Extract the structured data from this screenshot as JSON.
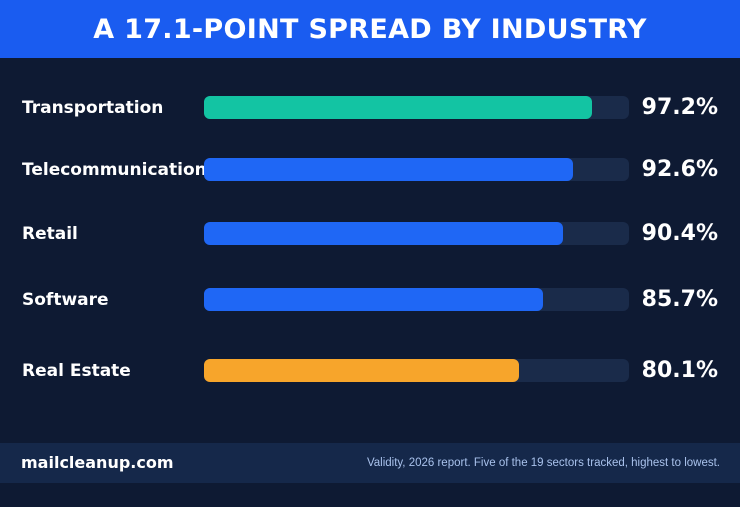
{
  "header": {
    "title": "A 17.1-POINT SPREAD BY INDUSTRY"
  },
  "chart_data": {
    "type": "bar",
    "orientation": "horizontal",
    "title": "A 17.1-POINT SPREAD BY INDUSTRY",
    "categories": [
      "Transportation",
      "Telecommunications",
      "Retail",
      "Software",
      "Real Estate"
    ],
    "values": [
      97.2,
      92.6,
      90.4,
      85.7,
      80.1
    ],
    "value_labels": [
      "97.2%",
      "92.6%",
      "90.4%",
      "85.7%",
      "80.1%"
    ],
    "colors": [
      "#13c4a3",
      "#1f67f5",
      "#1f67f5",
      "#1f67f5",
      "#f7a52b"
    ],
    "xlim": [
      0,
      100
    ],
    "grid": false
  },
  "footer": {
    "site": "mailcleanup.com",
    "note": "Validity, 2026 report. Five of the 19 sectors tracked, highest to lowest."
  },
  "colors": {
    "background": "#0e1a33",
    "header": "#1a5cf0",
    "track": "#1a2b4a",
    "footer": "#15284a"
  }
}
